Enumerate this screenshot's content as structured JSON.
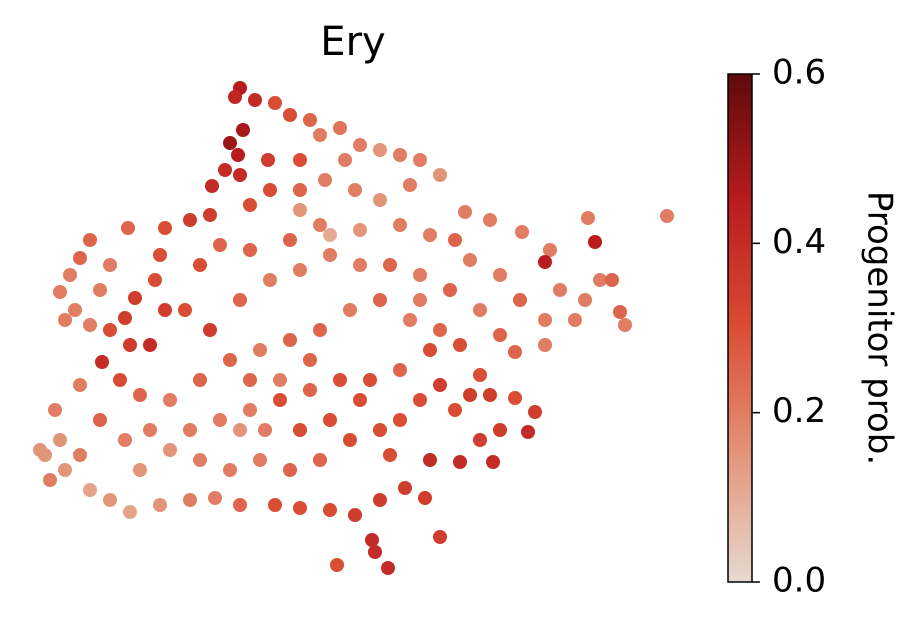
{
  "chart_data": {
    "type": "scatter",
    "title": "Ery",
    "x": [
      240,
      235,
      255,
      275,
      243,
      230,
      238,
      225,
      240,
      212,
      268,
      290,
      310,
      320,
      340,
      360,
      300,
      325,
      345,
      380,
      400,
      420,
      440,
      410,
      380,
      355,
      300,
      270,
      250,
      210,
      190,
      165,
      128,
      90,
      80,
      70,
      60,
      75,
      90,
      110,
      125,
      135,
      155,
      165,
      150,
      130,
      102,
      120,
      140,
      80,
      55,
      60,
      45,
      65,
      90,
      110,
      130,
      160,
      190,
      215,
      240,
      275,
      300,
      330,
      355,
      380,
      405,
      425,
      440,
      372,
      375,
      388,
      337,
      430,
      460,
      493,
      480,
      500,
      528,
      535,
      515,
      490,
      480,
      470,
      455,
      440,
      420,
      400,
      380,
      350,
      320,
      290,
      260,
      230,
      200,
      170,
      150,
      170,
      200,
      230,
      260,
      290,
      320,
      350,
      380,
      410,
      440,
      460,
      430,
      400,
      370,
      340,
      310,
      280,
      250,
      220,
      190,
      210,
      185,
      240,
      270,
      300,
      330,
      360,
      390,
      420,
      450,
      470,
      500,
      520,
      545,
      560,
      585,
      600,
      612,
      620,
      625,
      575,
      545,
      515,
      550,
      545,
      595,
      588,
      522,
      667,
      490,
      465,
      455,
      430,
      400,
      360,
      320,
      290,
      250,
      220,
      200,
      160,
      110,
      100,
      65,
      100,
      125,
      140,
      40,
      50,
      80,
      330,
      300,
      480,
      500,
      420,
      265,
      300,
      330,
      360,
      390,
      240,
      280,
      310,
      250
    ],
    "y": [
      512,
      503,
      500,
      497,
      470,
      457,
      445,
      430,
      425,
      414,
      440,
      485,
      480,
      465,
      472,
      455,
      440,
      420,
      440,
      450,
      445,
      440,
      425,
      415,
      400,
      410,
      410,
      410,
      395,
      385,
      380,
      372,
      372,
      360,
      342,
      325,
      308,
      290,
      275,
      270,
      282,
      302,
      320,
      290,
      255,
      255,
      238,
      220,
      205,
      215,
      190,
      160,
      145,
      130,
      110,
      100,
      88,
      95,
      100,
      102,
      95,
      95,
      92,
      90,
      85,
      100,
      112,
      102,
      63,
      60,
      48,
      32,
      35,
      140,
      138,
      138,
      160,
      170,
      168,
      188,
      202,
      205,
      225,
      205,
      190,
      215,
      200,
      180,
      170,
      160,
      140,
      130,
      140,
      130,
      140,
      150,
      170,
      200,
      220,
      240,
      250,
      260,
      270,
      290,
      300,
      280,
      270,
      255,
      250,
      230,
      220,
      220,
      210,
      200,
      190,
      180,
      170,
      270,
      290,
      300,
      320,
      330,
      345,
      335,
      335,
      325,
      310,
      340,
      325,
      300,
      280,
      310,
      300,
      320,
      320,
      288,
      275,
      280,
      255,
      248,
      350,
      338,
      358,
      382,
      368,
      384,
      380,
      388,
      360,
      365,
      375,
      370,
      375,
      360,
      350,
      355,
      335,
      345,
      335,
      310,
      280,
      180,
      160,
      130,
      150,
      120,
      145,
      365,
      390,
      290,
      265,
      300,
      170,
      170,
      180,
      200,
      145,
      170,
      220,
      240,
      220
    ],
    "values": [
      0.45,
      0.42,
      0.4,
      0.3,
      0.48,
      0.5,
      0.45,
      0.4,
      0.4,
      0.4,
      0.35,
      0.3,
      0.25,
      0.2,
      0.22,
      0.2,
      0.3,
      0.2,
      0.2,
      0.15,
      0.2,
      0.2,
      0.15,
      0.2,
      0.15,
      0.2,
      0.25,
      0.3,
      0.3,
      0.35,
      0.35,
      0.3,
      0.25,
      0.25,
      0.25,
      0.2,
      0.2,
      0.2,
      0.2,
      0.3,
      0.35,
      0.35,
      0.3,
      0.35,
      0.4,
      0.35,
      0.4,
      0.3,
      0.25,
      0.2,
      0.2,
      0.15,
      0.15,
      0.15,
      0.12,
      0.15,
      0.12,
      0.15,
      0.2,
      0.2,
      0.25,
      0.3,
      0.3,
      0.3,
      0.35,
      0.35,
      0.35,
      0.35,
      0.35,
      0.4,
      0.4,
      0.4,
      0.3,
      0.4,
      0.4,
      0.4,
      0.35,
      0.35,
      0.4,
      0.35,
      0.3,
      0.35,
      0.3,
      0.35,
      0.3,
      0.35,
      0.3,
      0.3,
      0.3,
      0.3,
      0.25,
      0.25,
      0.2,
      0.2,
      0.2,
      0.15,
      0.2,
      0.2,
      0.25,
      0.25,
      0.2,
      0.25,
      0.25,
      0.2,
      0.25,
      0.2,
      0.25,
      0.3,
      0.3,
      0.25,
      0.3,
      0.3,
      0.25,
      0.3,
      0.2,
      0.2,
      0.2,
      0.35,
      0.3,
      0.25,
      0.2,
      0.2,
      0.2,
      0.2,
      0.25,
      0.2,
      0.25,
      0.2,
      0.2,
      0.25,
      0.2,
      0.2,
      0.2,
      0.2,
      0.25,
      0.25,
      0.2,
      0.2,
      0.2,
      0.25,
      0.2,
      0.45,
      0.45,
      0.2,
      0.2,
      0.2,
      0.2,
      0.2,
      0.25,
      0.2,
      0.2,
      0.15,
      0.2,
      0.25,
      0.25,
      0.25,
      0.3,
      0.3,
      0.2,
      0.2,
      0.2,
      0.25,
      0.2,
      0.15,
      0.15,
      0.2,
      0.2,
      0.1,
      0.15,
      0.2,
      0.25,
      0.2,
      0.2,
      0.3,
      0.3,
      0.3,
      0.3,
      0.15,
      0.2,
      0.25,
      0.25
    ],
    "xlim": [
      30,
      680
    ],
    "ylim": [
      20,
      520
    ],
    "colorscale": [
      "#e6d9d0",
      "#e3957a",
      "#da4d35",
      "#b81c1e",
      "#5e0a0c"
    ],
    "colorbar_label": "Progenitor prob.",
    "clim": [
      0,
      0.6
    ],
    "cticks": [
      {
        "value": 0,
        "label": "0.0"
      },
      {
        "value": 0.2,
        "label": "0.2"
      },
      {
        "value": 0.4,
        "label": "0.4"
      },
      {
        "value": 0.6,
        "label": "0.6"
      }
    ]
  }
}
